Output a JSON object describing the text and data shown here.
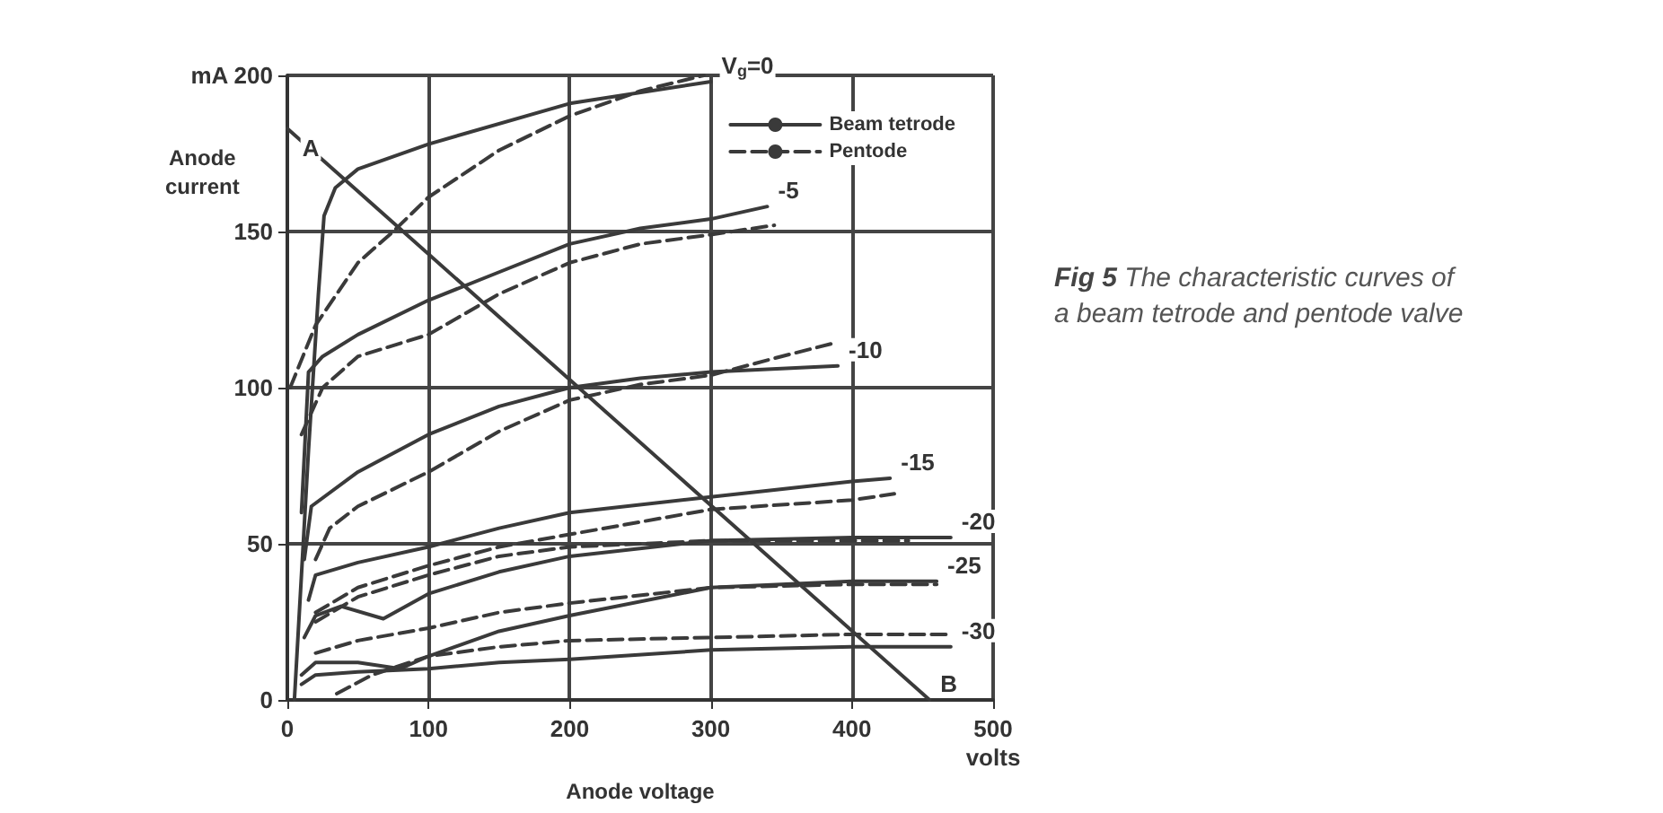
{
  "chart_data": {
    "type": "line",
    "title": "Fig 5 The characteristic curves of a beam tetrode and pentode valve",
    "xlabel": "Anode voltage",
    "ylabel": "Anode current",
    "xlim": [
      0,
      500
    ],
    "xticks": [
      0,
      100,
      200,
      300,
      400,
      {
        "value": 500,
        "label": "500\nvolts"
      }
    ],
    "ylim": [
      0,
      200
    ],
    "yticks": [
      0,
      50,
      100,
      150,
      {
        "value": 200,
        "label": "mA 200"
      }
    ],
    "grid": true,
    "legend": "top right",
    "marker": "none",
    "series": [
      {
        "name": "Beam tetrode",
        "color": "#3a3a3a",
        "line_style": "solid",
        "x": [
          5,
          15,
          22,
          26,
          34,
          50,
          100,
          200,
          300
        ],
        "values": [
          0,
          80,
          130,
          155,
          164,
          170,
          178,
          191,
          198
        ]
      },
      {
        "name": "Pentode",
        "color": "#3a3a3a",
        "line_style": "dashed",
        "x": [
          2,
          20,
          50,
          75,
          100,
          150,
          200,
          250,
          295
        ],
        "values": [
          100,
          120,
          140,
          150,
          161,
          176,
          187,
          195,
          200
        ]
      },
      {
        "color": "#3a3a3a",
        "line_style": "solid",
        "x": [
          10,
          15,
          25,
          50,
          100,
          150,
          200,
          250,
          300,
          340
        ],
        "values": [
          60,
          105,
          110,
          117,
          128,
          137,
          146,
          151,
          154,
          158
        ]
      },
      {
        "color": "#3a3a3a",
        "line_style": "dashed",
        "x": [
          10,
          25,
          50,
          100,
          150,
          200,
          250,
          300,
          345
        ],
        "values": [
          85,
          100,
          110,
          117,
          130,
          140,
          146,
          149,
          152
        ]
      },
      {
        "color": "#3a3a3a",
        "line_style": "solid",
        "x": [
          12,
          17,
          50,
          100,
          150,
          200,
          250,
          300,
          390
        ],
        "values": [
          45,
          62,
          73,
          85,
          94,
          100,
          103,
          105,
          107
        ]
      },
      {
        "color": "#3a3a3a",
        "line_style": "dashed",
        "x": [
          20,
          30,
          50,
          100,
          150,
          200,
          250,
          300,
          350,
          385
        ],
        "values": [
          45,
          55,
          62,
          73,
          86,
          96,
          101,
          104,
          110,
          114
        ]
      },
      {
        "color": "#3a3a3a",
        "line_style": "solid",
        "x": [
          15,
          20,
          50,
          100,
          150,
          200,
          300,
          400,
          427
        ],
        "values": [
          32,
          40,
          44,
          49,
          55,
          60,
          65,
          70,
          71
        ]
      },
      {
        "color": "#3a3a3a",
        "line_style": "dashed",
        "x": [
          20,
          50,
          100,
          150,
          200,
          300,
          400,
          430
        ],
        "values": [
          28,
          36,
          43,
          49,
          53,
          61,
          64,
          66
        ]
      },
      {
        "color": "#3a3a3a",
        "line_style": "solid",
        "x": [
          12,
          20,
          38,
          68,
          100,
          150,
          200,
          300,
          400,
          470
        ],
        "values": [
          20,
          27,
          30,
          26,
          34,
          41,
          46,
          51,
          52,
          52
        ]
      },
      {
        "color": "#3a3a3a",
        "line_style": "dashed",
        "x": [
          20,
          50,
          100,
          150,
          200,
          300,
          400,
          440
        ],
        "values": [
          25,
          33,
          40,
          46,
          49,
          51,
          51,
          51
        ]
      },
      {
        "color": "#3a3a3a",
        "line_style": "solid",
        "x": [
          10,
          20,
          50,
          80,
          100,
          150,
          200,
          300,
          400,
          460
        ],
        "values": [
          8,
          12,
          12,
          10,
          14,
          22,
          27,
          36,
          38,
          38
        ]
      },
      {
        "color": "#3a3a3a",
        "line_style": "dashed",
        "x": [
          20,
          50,
          100,
          150,
          200,
          300,
          400,
          460
        ],
        "values": [
          15,
          19,
          23,
          28,
          31,
          36,
          37,
          37
        ]
      },
      {
        "color": "#3a3a3a",
        "line_style": "solid",
        "x": [
          10,
          20,
          50,
          100,
          150,
          200,
          300,
          400,
          470
        ],
        "values": [
          5,
          8,
          9,
          10,
          12,
          13,
          16,
          17,
          17
        ]
      },
      {
        "color": "#3a3a3a",
        "line_style": "dashed",
        "x": [
          35,
          60,
          100,
          150,
          200,
          300,
          400,
          470
        ],
        "values": [
          2,
          8,
          14,
          17,
          19,
          20,
          21,
          21
        ]
      },
      {
        "color": "#3a3a3a",
        "line_style": "solid",
        "x": [
          0,
          455
        ],
        "values": [
          183,
          0
        ]
      }
    ],
    "annotations": [
      {
        "text": "V$_{g}$=0",
        "x": 300,
        "y": 198
      },
      {
        "text": "-5",
        "x": 340,
        "y": 158
      },
      {
        "text": "-10",
        "x": 390,
        "y": 107
      },
      {
        "text": "-15",
        "x": 427,
        "y": 71
      },
      {
        "text": "-20",
        "x": 470,
        "y": 52
      },
      {
        "text": "-25",
        "x": 460,
        "y": 38
      },
      {
        "text": "-30",
        "x": 470,
        "y": 17
      },
      {
        "text": "A",
        "x": 34,
        "y": 164
      },
      {
        "text": "B",
        "x": 455,
        "y": 0
      }
    ]
  }
}
